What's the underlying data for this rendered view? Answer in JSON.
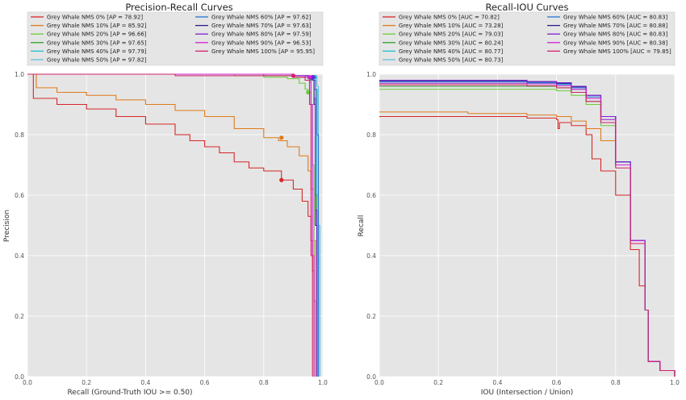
{
  "chart_data": [
    {
      "type": "line",
      "title": "Precision-Recall Curves",
      "xlabel": "Recall (Ground-Truth IOU >= 0.50)",
      "ylabel": "Precision",
      "xlim": [
        0,
        1.0
      ],
      "ylim": [
        0,
        1.0
      ],
      "xticks": [
        "0.0",
        "0.2",
        "0.4",
        "0.6",
        "0.8",
        "1.0"
      ],
      "yticks": [
        "0.0",
        "0.2",
        "0.4",
        "0.6",
        "0.8",
        "1.0"
      ],
      "grid": true,
      "legend_position": "top",
      "series": [
        {
          "name": "Grey Whale NMS 0% [AP = 78.92]",
          "color": "#d62728",
          "x": [
            0.0,
            0.01,
            0.02,
            0.05,
            0.1,
            0.2,
            0.3,
            0.4,
            0.5,
            0.55,
            0.6,
            0.65,
            0.7,
            0.75,
            0.8,
            0.86,
            0.9,
            0.93,
            0.95,
            0.96,
            0.965,
            0.97,
            0.975
          ],
          "y": [
            1.0,
            1.0,
            0.92,
            0.92,
            0.9,
            0.885,
            0.86,
            0.835,
            0.8,
            0.78,
            0.76,
            0.74,
            0.71,
            0.69,
            0.68,
            0.65,
            0.62,
            0.58,
            0.53,
            0.45,
            0.35,
            0.25,
            0.0
          ],
          "marker": {
            "x": 0.86,
            "y": 0.65
          }
        },
        {
          "name": "Grey Whale NMS 10% [AP = 85.92]",
          "color": "#e07b1a",
          "x": [
            0.0,
            0.02,
            0.03,
            0.1,
            0.2,
            0.3,
            0.4,
            0.5,
            0.6,
            0.7,
            0.8,
            0.85,
            0.88,
            0.92,
            0.95,
            0.96,
            0.97,
            0.975
          ],
          "y": [
            1.0,
            1.0,
            0.955,
            0.94,
            0.93,
            0.915,
            0.9,
            0.88,
            0.86,
            0.82,
            0.79,
            0.78,
            0.76,
            0.73,
            0.68,
            0.62,
            0.45,
            0.0
          ],
          "marker": {
            "x": 0.86,
            "y": 0.79
          }
        },
        {
          "name": "Grey Whale NMS 20% [AP = 96.66]",
          "color": "#6acc3b",
          "x": [
            0.0,
            0.5,
            0.7,
            0.8,
            0.88,
            0.92,
            0.94,
            0.95,
            0.96,
            0.965,
            0.97
          ],
          "y": [
            1.0,
            1.0,
            0.995,
            0.99,
            0.985,
            0.97,
            0.95,
            0.94,
            0.9,
            0.7,
            0.05
          ],
          "marker": {
            "x": 0.95,
            "y": 0.94
          }
        },
        {
          "name": "Grey Whale NMS 30% [AP = 97.65]",
          "color": "#2ca02c",
          "x": [
            0.0,
            0.8,
            0.9,
            0.95,
            0.96,
            0.97,
            0.975,
            0.98
          ],
          "y": [
            1.0,
            0.995,
            0.99,
            0.985,
            0.98,
            0.95,
            0.6,
            0.0
          ],
          "marker": {
            "x": 0.96,
            "y": 0.985
          }
        },
        {
          "name": "Grey Whale NMS 40% [AP = 97.79]",
          "color": "#17becf",
          "x": [
            0.0,
            0.9,
            0.95,
            0.97,
            0.975,
            0.98,
            0.985
          ],
          "y": [
            1.0,
            0.995,
            0.99,
            0.98,
            0.95,
            0.6,
            0.0
          ],
          "marker": {
            "x": 0.97,
            "y": 0.99
          }
        },
        {
          "name": "Grey Whale NMS 50% [AP = 97.82]",
          "color": "#5bc0de",
          "x": [
            0.0,
            0.9,
            0.95,
            0.97,
            0.98,
            0.985,
            0.99
          ],
          "y": [
            1.0,
            0.995,
            0.99,
            0.985,
            0.96,
            0.5,
            0.0
          ],
          "marker": {
            "x": 0.975,
            "y": 0.99
          }
        },
        {
          "name": "Grey Whale NMS 60% [AP = 97.62]",
          "color": "#1f77d4",
          "x": [
            0.0,
            0.9,
            0.95,
            0.97,
            0.975,
            0.98,
            0.985
          ],
          "y": [
            1.0,
            0.995,
            0.99,
            0.98,
            0.95,
            0.8,
            0.0
          ],
          "marker": {
            "x": 0.97,
            "y": 0.99
          }
        },
        {
          "name": "Grey Whale NMS 70% [AP = 97.63]",
          "color": "#2a1f8a",
          "x": [
            0.0,
            0.9,
            0.95,
            0.965,
            0.97,
            0.975,
            0.98
          ],
          "y": [
            1.0,
            0.995,
            0.99,
            0.98,
            0.9,
            0.5,
            0.0
          ],
          "marker": {
            "x": 0.965,
            "y": 0.99
          }
        },
        {
          "name": "Grey Whale NMS 80% [AP = 97.59]",
          "color": "#7b1fd4",
          "x": [
            0.0,
            0.9,
            0.95,
            0.965,
            0.97,
            0.975,
            0.98
          ],
          "y": [
            1.0,
            0.995,
            0.99,
            0.98,
            0.92,
            0.55,
            0.0
          ],
          "marker": {
            "x": 0.965,
            "y": 0.99
          }
        },
        {
          "name": "Grey Whale NMS 90% [AP = 96.53]",
          "color": "#d41fd4",
          "x": [
            0.0,
            0.9,
            0.94,
            0.955,
            0.96,
            0.965,
            0.97
          ],
          "y": [
            1.0,
            0.995,
            0.99,
            0.975,
            0.9,
            0.4,
            0.0
          ],
          "marker": {
            "x": 0.955,
            "y": 0.99
          }
        },
        {
          "name": "Grey Whale NMS 100% [AP = 95.95]",
          "color": "#d4206a",
          "x": [
            0.0,
            0.5,
            0.9,
            0.94,
            0.955,
            0.96,
            0.965
          ],
          "y": [
            1.0,
            0.995,
            0.99,
            0.98,
            0.9,
            0.4,
            0.0
          ],
          "marker": {
            "x": 0.9,
            "y": 0.995
          }
        }
      ]
    },
    {
      "type": "line",
      "title": "Recall-IOU Curves",
      "xlabel": "IOU (Intersection / Union)",
      "ylabel": "Recall",
      "xlim": [
        0,
        1.0
      ],
      "ylim": [
        0,
        1.0
      ],
      "xticks": [
        "0.0",
        "0.2",
        "0.4",
        "0.6",
        "0.8",
        "1.0"
      ],
      "yticks": [
        "0.0",
        "0.2",
        "0.4",
        "0.6",
        "0.8",
        "1.0"
      ],
      "grid": true,
      "legend_position": "top",
      "series": [
        {
          "name": "Grey Whale NMS 0% [AUC = 70.82]",
          "color": "#d62728",
          "x": [
            0.0,
            0.1,
            0.3,
            0.5,
            0.6,
            0.605,
            0.61,
            0.65,
            0.7,
            0.72,
            0.75,
            0.8,
            0.85,
            0.88,
            0.9,
            0.91,
            0.95,
            1.0
          ],
          "y": [
            0.86,
            0.86,
            0.86,
            0.855,
            0.85,
            0.82,
            0.84,
            0.83,
            0.8,
            0.72,
            0.68,
            0.6,
            0.42,
            0.3,
            0.22,
            0.05,
            0.02,
            0.0
          ]
        },
        {
          "name": "Grey Whale NMS 10% [AUC = 73.28]",
          "color": "#e07b1a",
          "x": [
            0.0,
            0.3,
            0.5,
            0.6,
            0.65,
            0.7,
            0.75,
            0.8,
            0.85,
            0.9,
            0.91,
            0.95,
            1.0
          ],
          "y": [
            0.875,
            0.87,
            0.865,
            0.86,
            0.845,
            0.82,
            0.78,
            0.7,
            0.45,
            0.22,
            0.05,
            0.02,
            0.0
          ]
        },
        {
          "name": "Grey Whale NMS 20% [AUC = 79.03]",
          "color": "#6acc3b",
          "x": [
            0.0,
            0.2,
            0.5,
            0.6,
            0.65,
            0.7,
            0.75,
            0.8,
            0.85,
            0.9,
            0.91,
            0.95,
            1.0
          ],
          "y": [
            0.95,
            0.95,
            0.95,
            0.945,
            0.93,
            0.9,
            0.83,
            0.7,
            0.45,
            0.22,
            0.05,
            0.02,
            0.0
          ]
        },
        {
          "name": "Grey Whale NMS 30% [AUC = 80.24]",
          "color": "#2ca02c",
          "x": [
            0.0,
            0.3,
            0.5,
            0.6,
            0.65,
            0.7,
            0.75,
            0.8,
            0.85,
            0.9,
            0.91,
            0.95,
            1.0
          ],
          "y": [
            0.96,
            0.96,
            0.96,
            0.955,
            0.94,
            0.91,
            0.84,
            0.7,
            0.45,
            0.22,
            0.05,
            0.02,
            0.0
          ]
        },
        {
          "name": "Grey Whale NMS 40% [AUC = 80.77]",
          "color": "#17becf",
          "x": [
            0.0,
            0.3,
            0.5,
            0.6,
            0.65,
            0.7,
            0.75,
            0.8,
            0.85,
            0.9,
            0.91,
            0.95,
            1.0
          ],
          "y": [
            0.97,
            0.97,
            0.97,
            0.965,
            0.95,
            0.92,
            0.85,
            0.71,
            0.45,
            0.22,
            0.05,
            0.02,
            0.0
          ]
        },
        {
          "name": "Grey Whale NMS 50% [AUC = 80.73]",
          "color": "#5bc0de",
          "x": [
            0.0,
            0.3,
            0.5,
            0.6,
            0.65,
            0.7,
            0.75,
            0.8,
            0.85,
            0.9,
            0.91,
            0.95,
            1.0
          ],
          "y": [
            0.97,
            0.97,
            0.97,
            0.965,
            0.95,
            0.92,
            0.85,
            0.71,
            0.45,
            0.22,
            0.05,
            0.02,
            0.0
          ]
        },
        {
          "name": "Grey Whale NMS 60% [AUC = 80.83]",
          "color": "#1f77d4",
          "x": [
            0.0,
            0.3,
            0.5,
            0.6,
            0.65,
            0.7,
            0.75,
            0.8,
            0.85,
            0.9,
            0.91,
            0.95,
            1.0
          ],
          "y": [
            0.975,
            0.975,
            0.972,
            0.968,
            0.955,
            0.925,
            0.86,
            0.71,
            0.45,
            0.22,
            0.05,
            0.02,
            0.0
          ]
        },
        {
          "name": "Grey Whale NMS 70% [AUC = 80.88]",
          "color": "#2a1f8a",
          "x": [
            0.0,
            0.3,
            0.5,
            0.6,
            0.65,
            0.7,
            0.75,
            0.8,
            0.85,
            0.9,
            0.91,
            0.95,
            1.0
          ],
          "y": [
            0.978,
            0.978,
            0.975,
            0.97,
            0.958,
            0.93,
            0.86,
            0.71,
            0.45,
            0.22,
            0.05,
            0.02,
            0.0
          ]
        },
        {
          "name": "Grey Whale NMS 80% [AUC = 80.83]",
          "color": "#7b1fd4",
          "x": [
            0.0,
            0.3,
            0.5,
            0.6,
            0.65,
            0.7,
            0.75,
            0.8,
            0.85,
            0.9,
            0.91,
            0.95,
            1.0
          ],
          "y": [
            0.98,
            0.98,
            0.976,
            0.972,
            0.96,
            0.93,
            0.86,
            0.71,
            0.45,
            0.22,
            0.05,
            0.02,
            0.0
          ]
        },
        {
          "name": "Grey Whale NMS 90% [AUC = 80.38]",
          "color": "#d41fd4",
          "x": [
            0.0,
            0.3,
            0.5,
            0.6,
            0.65,
            0.7,
            0.75,
            0.8,
            0.85,
            0.9,
            0.91,
            0.95,
            1.0
          ],
          "y": [
            0.97,
            0.97,
            0.968,
            0.962,
            0.95,
            0.92,
            0.85,
            0.7,
            0.45,
            0.22,
            0.05,
            0.02,
            0.0
          ]
        },
        {
          "name": "Grey Whale NMS 100% [AUC = 79.85]",
          "color": "#d4206a",
          "x": [
            0.0,
            0.3,
            0.5,
            0.6,
            0.65,
            0.7,
            0.75,
            0.8,
            0.85,
            0.9,
            0.91,
            0.95,
            1.0
          ],
          "y": [
            0.965,
            0.965,
            0.962,
            0.955,
            0.94,
            0.91,
            0.84,
            0.69,
            0.44,
            0.22,
            0.05,
            0.02,
            0.0
          ]
        }
      ]
    }
  ]
}
